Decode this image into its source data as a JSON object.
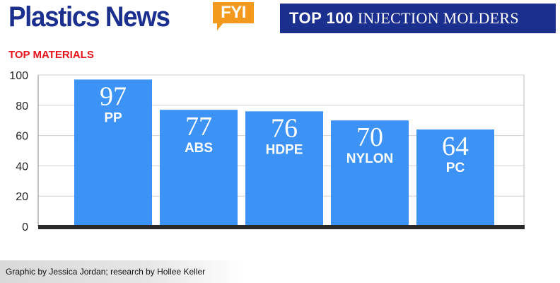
{
  "header": {
    "brand": "Plastics News",
    "badge": "FYI",
    "banner_bold": "TOP 100",
    "banner_light": "INJECTION MOLDERS"
  },
  "colors": {
    "brand_blue": "#1b2f8f",
    "badge_orange": "#f39a1e",
    "title_red": "#e8141b",
    "bar_blue": "#3d93f5",
    "axis_dark": "#2a2a2a"
  },
  "chart_data": {
    "type": "bar",
    "title": "TOP MATERIALS",
    "categories": [
      "PP",
      "ABS",
      "HDPE",
      "NYLON",
      "PC"
    ],
    "values": [
      97,
      77,
      76,
      70,
      64
    ],
    "ylim": [
      0,
      100
    ],
    "yticks": [
      0,
      20,
      40,
      60,
      80,
      100
    ],
    "grid": true,
    "xlabel": "",
    "ylabel": ""
  },
  "footer": {
    "credit": "Graphic by Jessica Jordan; research by Hollee Keller"
  }
}
